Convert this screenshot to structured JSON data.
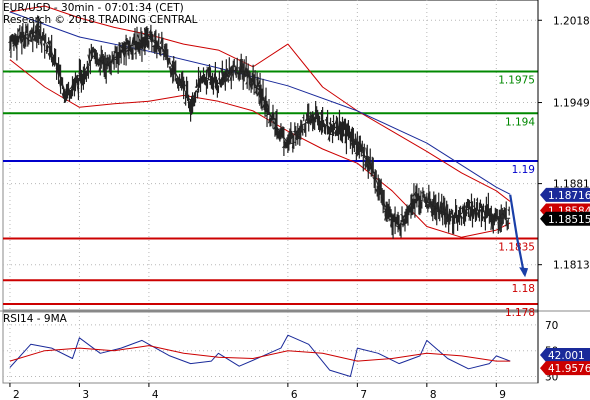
{
  "header": {
    "line1": "EUR/USD - 30min - 07:01:34 (CET)",
    "line2": "Research © 2018 TRADING CENTRAL"
  },
  "colors": {
    "price": "#222222",
    "bollinger": "#cc0000",
    "moving_average": "#1a2a9a",
    "support_resistance_green": "#008800",
    "pivot_blue": "#0000cc",
    "target_red": "#cc0000",
    "arrow": "#1a3fa8",
    "rsi": "#1a2a9a",
    "rsi_ma": "#cc0000",
    "grid": "#b8b8b8"
  },
  "chart_data": [
    {
      "type": "candlestick",
      "title": "EUR/USD - 30min",
      "ylim": [
        1.1775,
        1.2035
      ],
      "yticks": [
        "1.2018",
        "1.1949",
        "1.1881",
        "1.1813"
      ],
      "xticks": [
        "2",
        "3",
        "4",
        "6",
        "7",
        "8",
        "9"
      ],
      "grid": true,
      "horizontal_levels": [
        {
          "value": 1.1975,
          "label": "1.1975",
          "color": "green"
        },
        {
          "value": 1.194,
          "label": "1.194",
          "color": "green"
        },
        {
          "value": 1.19,
          "label": "1.19",
          "color": "blue"
        },
        {
          "value": 1.1835,
          "label": "1.1835",
          "color": "red"
        },
        {
          "value": 1.18,
          "label": "1.18",
          "color": "red"
        },
        {
          "value": 1.178,
          "label": "1.178",
          "color": "red"
        }
      ],
      "price_tags": [
        {
          "value": 1.18716,
          "label": "1.18716",
          "color": "blue"
        },
        {
          "value": 1.18584,
          "label": "1.18584",
          "color": "red"
        },
        {
          "value": 1.18515,
          "label": "1.18515",
          "color": "black"
        }
      ],
      "series": [
        {
          "kind": "price",
          "x": [
            2,
            2.2,
            2.4,
            2.6,
            2.8,
            3,
            3.2,
            3.4,
            3.6,
            3.8,
            4,
            4.2,
            4.4,
            4.6,
            4.8,
            5,
            5.2,
            5.4,
            5.6,
            5.8,
            6,
            6.2,
            6.4,
            6.6,
            6.8,
            7,
            7.2,
            7.4,
            7.6,
            7.8,
            8,
            8.2,
            8.4,
            8.6,
            8.8,
            9,
            9.2
          ],
          "values": [
            1.2,
            1.2005,
            1.2009,
            1.1992,
            1.1957,
            1.1968,
            1.1988,
            1.198,
            1.1992,
            1.1998,
            1.2003,
            1.1994,
            1.1972,
            1.195,
            1.197,
            1.1965,
            1.1976,
            1.1975,
            1.1958,
            1.1932,
            1.1915,
            1.193,
            1.1936,
            1.1928,
            1.1928,
            1.1914,
            1.1896,
            1.1862,
            1.1845,
            1.1868,
            1.1866,
            1.1858,
            1.1852,
            1.186,
            1.1858,
            1.1852,
            1.1852
          ]
        },
        {
          "kind": "moving_average",
          "x": [
            2,
            3,
            4,
            5,
            6,
            7,
            8,
            9,
            9.2
          ],
          "values": [
            1.2025,
            1.2004,
            1.1992,
            1.1978,
            1.1963,
            1.1942,
            1.1915,
            1.1878,
            1.1872
          ]
        },
        {
          "kind": "bollinger_upper",
          "x": [
            2,
            2.5,
            3,
            3.5,
            4,
            4.5,
            5,
            5.5,
            6,
            6.5,
            7,
            7.5,
            8,
            8.5,
            9,
            9.2
          ],
          "values": [
            1.2025,
            1.203,
            1.202,
            1.2012,
            1.2006,
            1.1998,
            1.1993,
            1.1979,
            1.1998,
            1.1962,
            1.1942,
            1.1925,
            1.1908,
            1.189,
            1.1875,
            1.1866
          ]
        },
        {
          "kind": "bollinger_lower",
          "x": [
            2,
            2.5,
            3,
            3.5,
            4,
            4.5,
            5,
            5.5,
            6,
            6.5,
            7,
            7.5,
            8,
            8.5,
            9,
            9.2
          ],
          "values": [
            1.1985,
            1.1962,
            1.1945,
            1.1948,
            1.195,
            1.1955,
            1.195,
            1.1942,
            1.1925,
            1.191,
            1.1898,
            1.1875,
            1.1845,
            1.1836,
            1.1842,
            1.1848
          ]
        }
      ],
      "forecast_path": {
        "x": [
          9.2,
          9.3,
          9.4
        ],
        "values": [
          1.18716,
          1.1835,
          1.1805
        ]
      }
    },
    {
      "type": "line",
      "title": "RSI14 - 9MA",
      "ylim": [
        25,
        80
      ],
      "yticks": [
        "70",
        "50",
        "30"
      ],
      "xticks": [
        "2",
        "3",
        "4",
        "6",
        "7",
        "8",
        "9"
      ],
      "price_tags": [
        {
          "value": 42.001,
          "label": "42.001",
          "color": "blue"
        },
        {
          "value": 41.9576,
          "label": "41.9576",
          "color": "red"
        }
      ],
      "series": [
        {
          "kind": "rsi",
          "x": [
            2,
            2.3,
            2.6,
            2.9,
            3,
            3.3,
            3.6,
            3.9,
            4,
            4.3,
            4.6,
            4.9,
            5,
            5.3,
            5.6,
            5.9,
            6,
            6.3,
            6.6,
            6.9,
            7,
            7.3,
            7.6,
            7.9,
            8,
            8.3,
            8.6,
            8.9,
            9,
            9.2
          ],
          "values": [
            37,
            55,
            52,
            44,
            60,
            48,
            52,
            58,
            55,
            46,
            40,
            42,
            48,
            38,
            45,
            52,
            62,
            55,
            35,
            30,
            52,
            48,
            40,
            46,
            58,
            44,
            36,
            40,
            46,
            42
          ]
        },
        {
          "kind": "rsi_ma",
          "x": [
            2,
            2.5,
            3,
            3.5,
            4,
            4.5,
            5,
            5.5,
            6,
            6.5,
            7,
            7.5,
            8,
            8.5,
            9,
            9.2
          ],
          "values": [
            42,
            50,
            52,
            50,
            54,
            48,
            45,
            44,
            50,
            48,
            42,
            44,
            48,
            46,
            42,
            42
          ]
        }
      ]
    }
  ]
}
